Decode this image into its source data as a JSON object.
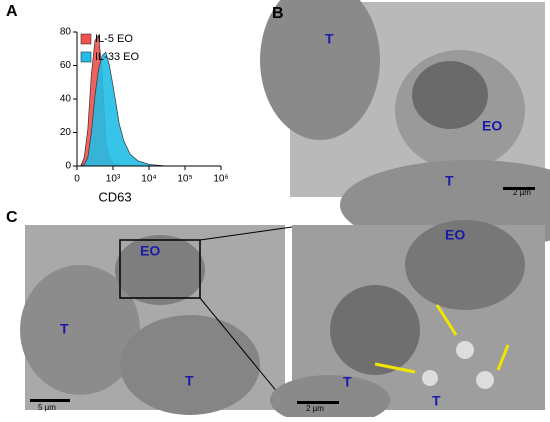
{
  "chart_data": {
    "type": "area",
    "panel_label": "A",
    "x_label": "CD63",
    "xscale": "biexponential",
    "x": [
      0,
      100,
      200,
      300,
      400,
      500,
      600,
      700,
      800,
      900,
      1000,
      1500,
      2000,
      3000,
      5000,
      10000,
      30000,
      1000000
    ],
    "series": [
      {
        "name": "IL-5 EO",
        "color": "#f0504c",
        "values": [
          0,
          0,
          5,
          22,
          55,
          75,
          78,
          55,
          15,
          5,
          2,
          0.5,
          0,
          0,
          0,
          0,
          0,
          0
        ]
      },
      {
        "name": "IL-33 EO",
        "color": "#22bde6",
        "values": [
          0,
          0,
          1,
          5,
          20,
          42,
          58,
          66,
          68,
          60,
          48,
          25,
          15,
          7,
          3,
          1,
          0,
          0
        ]
      }
    ],
    "xlim": [
      0,
      1000000
    ],
    "xticks": [
      0,
      {
        "value": 1000,
        "label": "10³"
      },
      {
        "value": 10000,
        "label": "10⁴"
      },
      {
        "value": 100000,
        "label": "10⁵"
      },
      {
        "value": 1000000,
        "label": "10⁶"
      }
    ],
    "ylim": [
      0,
      80
    ],
    "yticks": [
      0,
      20,
      40,
      60,
      80
    ],
    "legend": "upper-left"
  },
  "micrographs": [
    {
      "panel_label": "B",
      "labels": [
        "T",
        "EO",
        "T"
      ],
      "scale_bar": "2 µm"
    },
    {
      "panel_label": "C",
      "labels": [
        "EO",
        "T",
        "T"
      ],
      "scale_bar": "5 µm"
    },
    {
      "labels": [
        "EO",
        "T",
        "T"
      ],
      "scale_bar": "2 µm"
    }
  ]
}
